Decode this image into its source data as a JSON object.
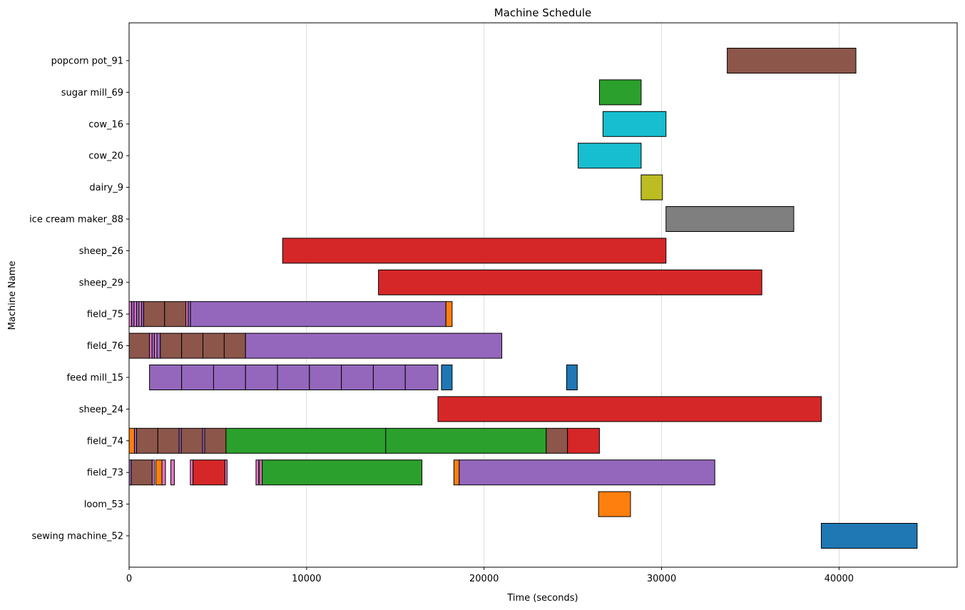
{
  "chart_data": {
    "type": "gantt",
    "title": "Machine Schedule",
    "xlabel": "Time (seconds)",
    "ylabel": "Machine Name",
    "xlim": [
      0,
      46650
    ],
    "xticks": [
      0,
      10000,
      20000,
      30000,
      40000
    ],
    "grid": "vertical",
    "colors": {
      "blue": "#1f77b4",
      "orange": "#ff7f0e",
      "green": "#2ca02c",
      "red": "#d62728",
      "purple": "#9467bd",
      "brown": "#8c564b",
      "pink": "#e377c2",
      "gray": "#7f7f7f",
      "olive": "#bcbd22",
      "cyan": "#17becf"
    },
    "machines": [
      {
        "name": "popcorn pot_91",
        "tasks": [
          {
            "start": 33700,
            "end": 40950,
            "color": "brown"
          }
        ]
      },
      {
        "name": "sugar mill_69",
        "tasks": [
          {
            "start": 26500,
            "end": 28850,
            "color": "green"
          }
        ]
      },
      {
        "name": "cow_16",
        "tasks": [
          {
            "start": 26700,
            "end": 30250,
            "color": "cyan"
          }
        ]
      },
      {
        "name": "cow_20",
        "tasks": [
          {
            "start": 25300,
            "end": 28850,
            "color": "cyan"
          }
        ]
      },
      {
        "name": "dairy_9",
        "tasks": [
          {
            "start": 28850,
            "end": 30050,
            "color": "olive"
          }
        ]
      },
      {
        "name": "ice cream maker_88",
        "tasks": [
          {
            "start": 30250,
            "end": 37450,
            "color": "gray"
          }
        ]
      },
      {
        "name": "sheep_26",
        "tasks": [
          {
            "start": 8650,
            "end": 30250,
            "color": "red"
          }
        ]
      },
      {
        "name": "sheep_29",
        "tasks": [
          {
            "start": 14050,
            "end": 35650,
            "color": "red"
          }
        ]
      },
      {
        "name": "field_75",
        "tasks": [
          {
            "start": 0,
            "end": 140,
            "color": "pink"
          },
          {
            "start": 140,
            "end": 280,
            "color": "purple"
          },
          {
            "start": 280,
            "end": 420,
            "color": "pink"
          },
          {
            "start": 420,
            "end": 560,
            "color": "purple"
          },
          {
            "start": 560,
            "end": 700,
            "color": "pink"
          },
          {
            "start": 700,
            "end": 820,
            "color": "purple"
          },
          {
            "start": 820,
            "end": 2000,
            "color": "brown"
          },
          {
            "start": 2000,
            "end": 3200,
            "color": "brown"
          },
          {
            "start": 3200,
            "end": 3330,
            "color": "pink"
          },
          {
            "start": 3330,
            "end": 3460,
            "color": "purple"
          },
          {
            "start": 3460,
            "end": 17850,
            "color": "purple"
          },
          {
            "start": 17850,
            "end": 18200,
            "color": "orange"
          }
        ]
      },
      {
        "name": "field_76",
        "tasks": [
          {
            "start": 0,
            "end": 1150,
            "color": "brown"
          },
          {
            "start": 1150,
            "end": 1290,
            "color": "pink"
          },
          {
            "start": 1290,
            "end": 1430,
            "color": "purple"
          },
          {
            "start": 1430,
            "end": 1570,
            "color": "pink"
          },
          {
            "start": 1570,
            "end": 1760,
            "color": "purple"
          },
          {
            "start": 1760,
            "end": 2960,
            "color": "brown"
          },
          {
            "start": 2960,
            "end": 4160,
            "color": "brown"
          },
          {
            "start": 4160,
            "end": 5360,
            "color": "brown"
          },
          {
            "start": 5360,
            "end": 6560,
            "color": "brown"
          },
          {
            "start": 6560,
            "end": 21000,
            "color": "purple"
          }
        ]
      },
      {
        "name": "feed mill_15",
        "tasks": [
          {
            "start": 1150,
            "end": 2960,
            "color": "purple"
          },
          {
            "start": 2960,
            "end": 4760,
            "color": "purple"
          },
          {
            "start": 4760,
            "end": 6560,
            "color": "purple"
          },
          {
            "start": 6560,
            "end": 8360,
            "color": "purple"
          },
          {
            "start": 8360,
            "end": 10160,
            "color": "purple"
          },
          {
            "start": 10160,
            "end": 11960,
            "color": "purple"
          },
          {
            "start": 11960,
            "end": 13760,
            "color": "purple"
          },
          {
            "start": 13760,
            "end": 15560,
            "color": "purple"
          },
          {
            "start": 15560,
            "end": 17400,
            "color": "purple"
          },
          {
            "start": 17600,
            "end": 18200,
            "color": "blue"
          },
          {
            "start": 24650,
            "end": 25250,
            "color": "blue"
          }
        ]
      },
      {
        "name": "sheep_24",
        "tasks": [
          {
            "start": 17400,
            "end": 39000,
            "color": "red"
          }
        ]
      },
      {
        "name": "field_74",
        "tasks": [
          {
            "start": 0,
            "end": 300,
            "color": "orange"
          },
          {
            "start": 300,
            "end": 420,
            "color": "purple"
          },
          {
            "start": 420,
            "end": 1620,
            "color": "brown"
          },
          {
            "start": 1620,
            "end": 2820,
            "color": "brown"
          },
          {
            "start": 2820,
            "end": 2940,
            "color": "purple"
          },
          {
            "start": 2940,
            "end": 4140,
            "color": "brown"
          },
          {
            "start": 4140,
            "end": 4260,
            "color": "purple"
          },
          {
            "start": 4260,
            "end": 5460,
            "color": "brown"
          },
          {
            "start": 5460,
            "end": 14460,
            "color": "green"
          },
          {
            "start": 14460,
            "end": 23500,
            "color": "green"
          },
          {
            "start": 23500,
            "end": 24700,
            "color": "brown"
          },
          {
            "start": 24700,
            "end": 26500,
            "color": "red"
          }
        ]
      },
      {
        "name": "field_73",
        "tasks": [
          {
            "start": 0,
            "end": 120,
            "color": "purple"
          },
          {
            "start": 120,
            "end": 1300,
            "color": "brown"
          },
          {
            "start": 1300,
            "end": 1420,
            "color": "pink"
          },
          {
            "start": 1500,
            "end": 1850,
            "color": "orange"
          },
          {
            "start": 1850,
            "end": 2050,
            "color": "pink"
          },
          {
            "start": 2350,
            "end": 2550,
            "color": "pink"
          },
          {
            "start": 3450,
            "end": 3600,
            "color": "pink"
          },
          {
            "start": 3600,
            "end": 5400,
            "color": "red"
          },
          {
            "start": 5400,
            "end": 5520,
            "color": "pink"
          },
          {
            "start": 7150,
            "end": 7300,
            "color": "pink"
          },
          {
            "start": 7350,
            "end": 7500,
            "color": "pink"
          },
          {
            "start": 7500,
            "end": 16500,
            "color": "green"
          },
          {
            "start": 18300,
            "end": 18600,
            "color": "orange"
          },
          {
            "start": 18600,
            "end": 33000,
            "color": "purple"
          }
        ]
      },
      {
        "name": "loom_53",
        "tasks": [
          {
            "start": 26450,
            "end": 28250,
            "color": "orange"
          }
        ]
      },
      {
        "name": "sewing machine_52",
        "tasks": [
          {
            "start": 39000,
            "end": 44400,
            "color": "blue"
          }
        ]
      }
    ]
  }
}
